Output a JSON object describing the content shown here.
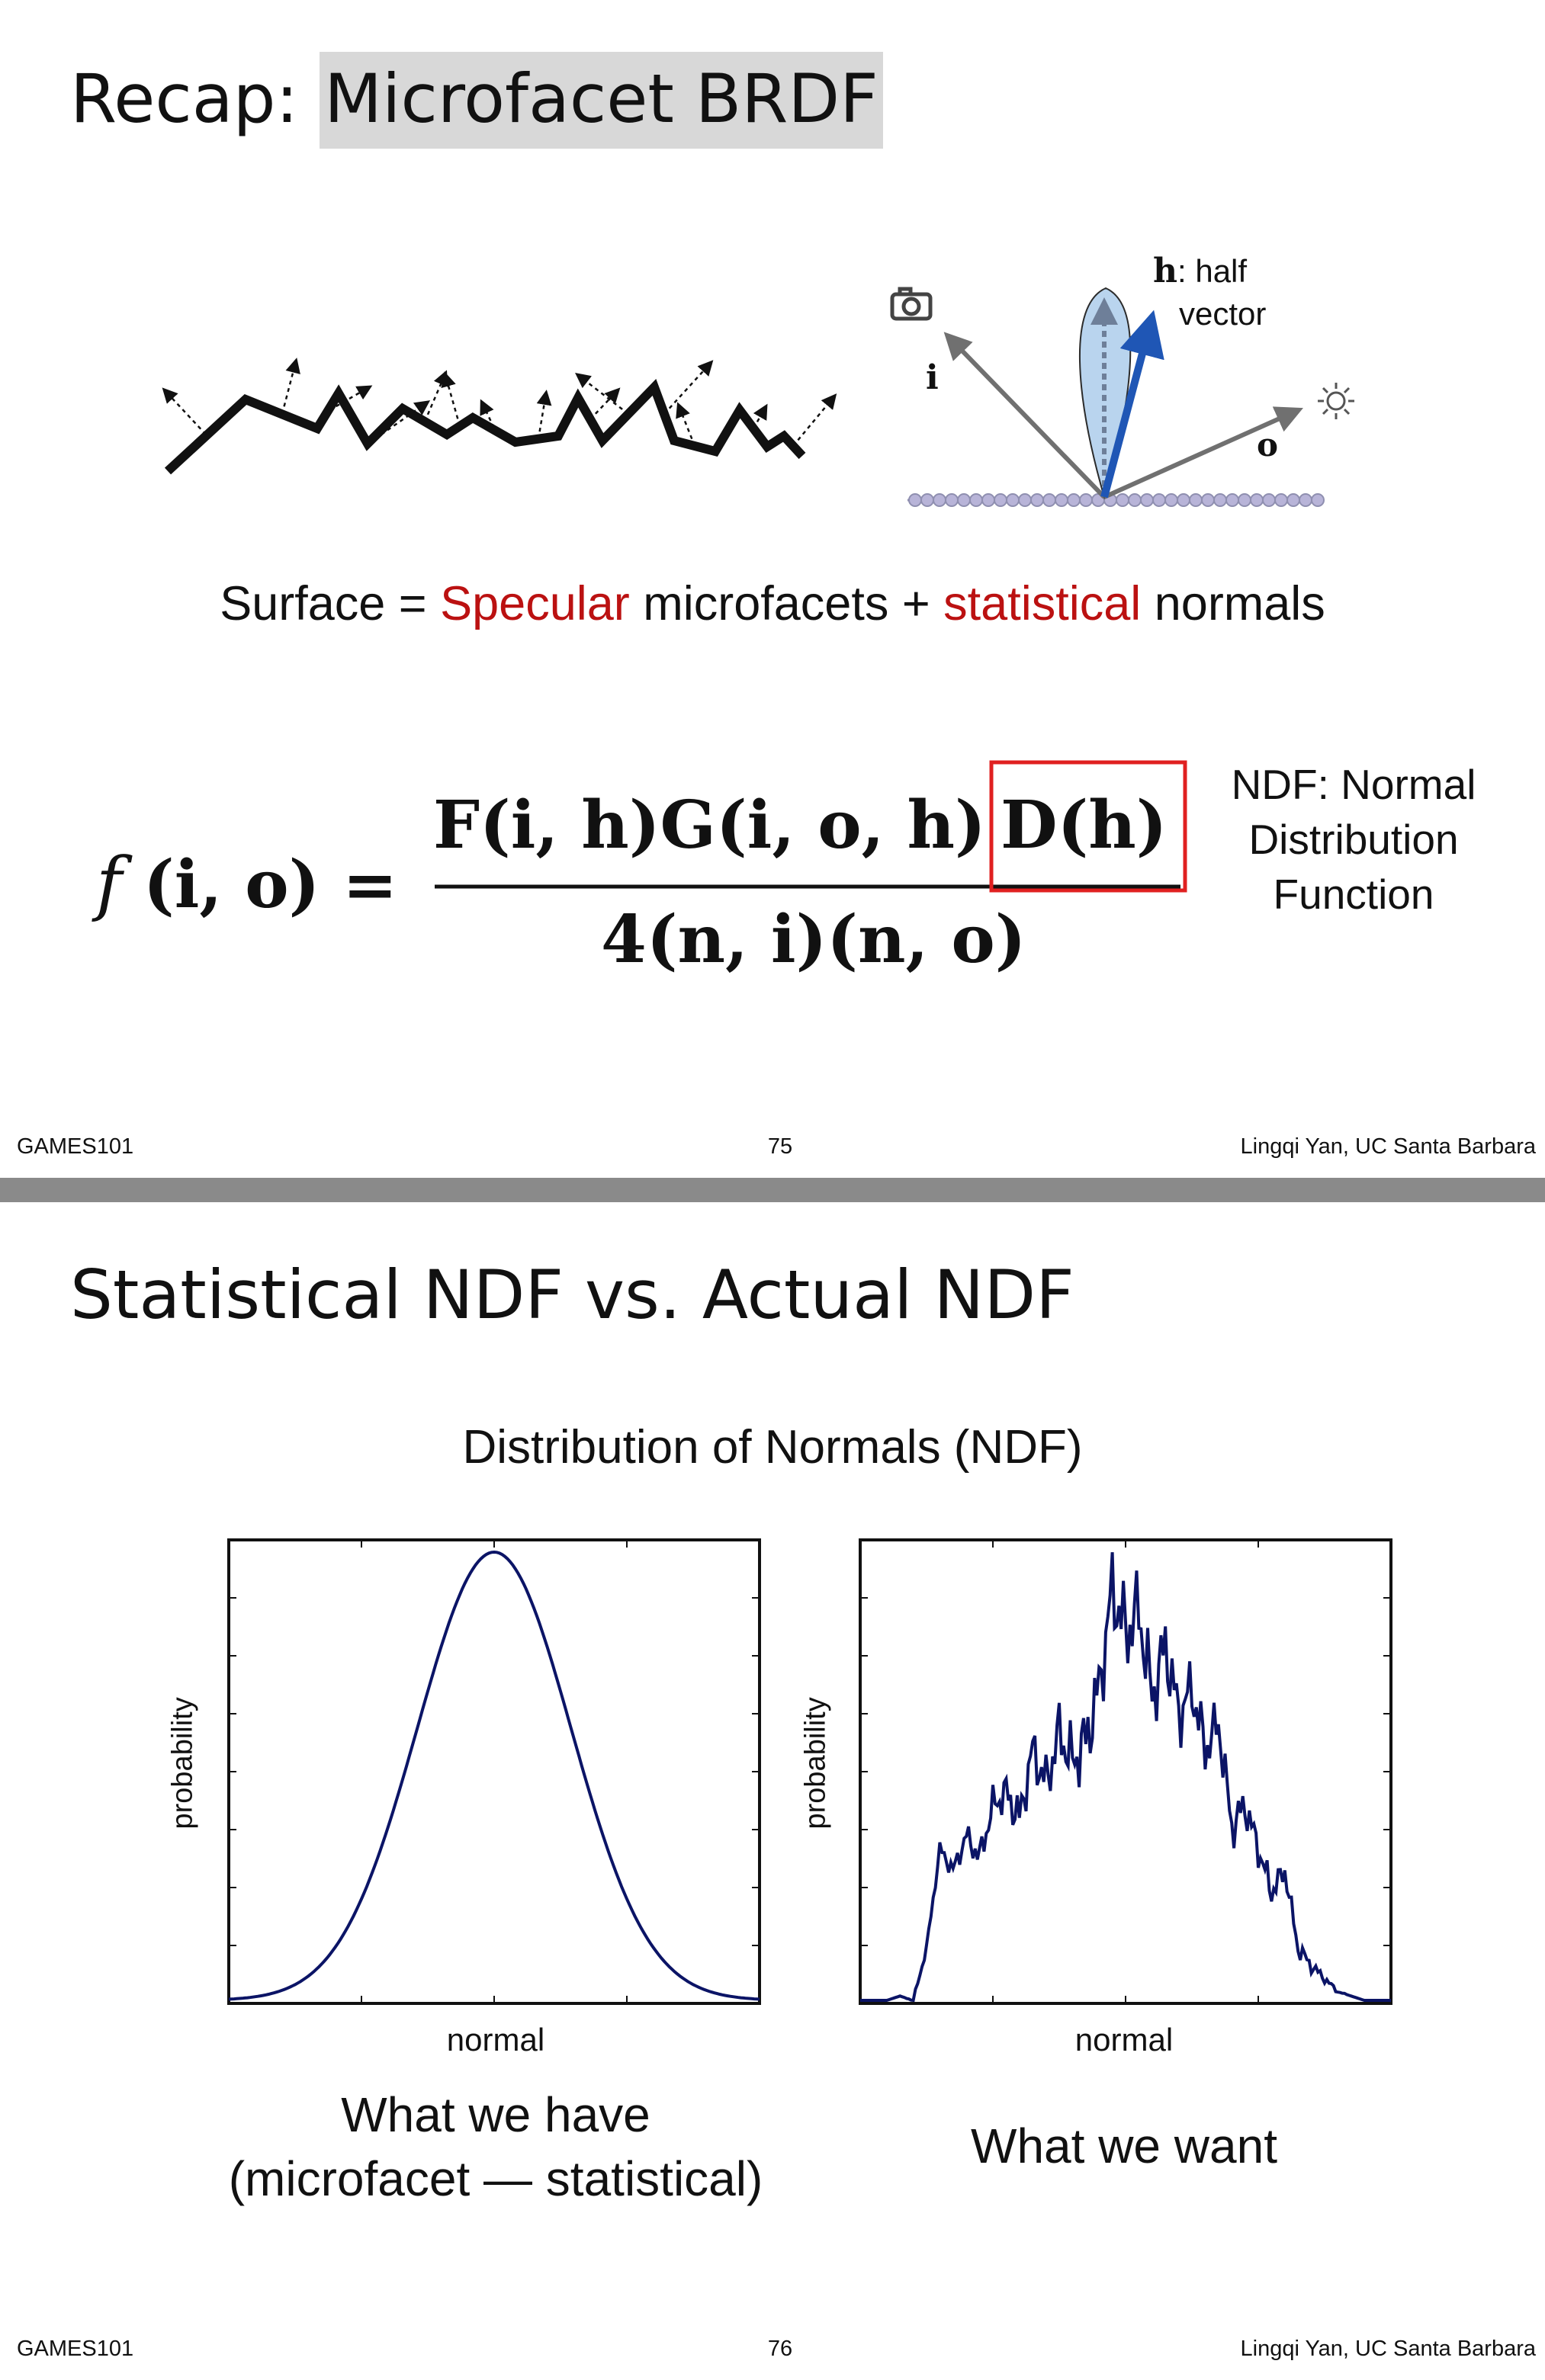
{
  "slide1": {
    "title_plain": "Recap: ",
    "title_highlight": "Microfacet BRDF",
    "h_symbol": "h",
    "h_label_line1": ": half",
    "h_label_line2": "vector",
    "i_symbol": "i",
    "o_symbol": "o",
    "surface_prefix": "Surface = ",
    "surface_specular": "Specular",
    "surface_middle": " microfacets + ",
    "surface_statistical": "statistical",
    "surface_suffix": " normals",
    "formula": {
      "lhs_f": "f",
      "lhs_args": "(i, o) =",
      "numerator": "F(i, h)G(i, o, h)",
      "numerator_boxed": "D(h)",
      "denominator": "4(n, i)(n, o)"
    },
    "ndf_note": [
      "NDF: Normal",
      "Distribution",
      "Function"
    ],
    "footer": {
      "left": "GAMES101",
      "page": "75",
      "right": "Lingqi Yan, UC Santa Barbara"
    },
    "colors": {
      "highlight": "#d8d8d8",
      "red_text": "#bb1111",
      "box": "#e02020",
      "arrow_blue": "#1f56b5",
      "arrow_gray": "#707070",
      "lobe": "#b9d4ee"
    }
  },
  "slide2": {
    "title": "Statistical NDF vs. Actual NDF",
    "chart_title": "Distribution of Normals (NDF)",
    "footer": {
      "left": "GAMES101",
      "page": "76",
      "right": "Lingqi Yan, UC Santa Barbara"
    },
    "captions": {
      "left": [
        "What we have",
        "(microfacet — statistical)"
      ],
      "right": [
        "What we want"
      ]
    }
  },
  "chart_data": [
    {
      "type": "line",
      "xlabel": "normal",
      "ylabel": "probability",
      "shape": "smooth gaussian",
      "series": [
        {
          "values": [
            0.0,
            0.0,
            0.01,
            0.04,
            0.1,
            0.21,
            0.37,
            0.56,
            0.75,
            0.91,
            1.0,
            0.91,
            0.75,
            0.56,
            0.37,
            0.21,
            0.1,
            0.04,
            0.01,
            0.0,
            0.0
          ]
        }
      ],
      "color": "#0b1466"
    },
    {
      "type": "line",
      "xlabel": "normal",
      "ylabel": "probability",
      "shape": "noisy measured distribution",
      "series": [
        {
          "values": [
            0.0,
            0.0,
            0.0,
            0.01,
            0.0,
            0.12,
            0.35,
            0.3,
            0.38,
            0.33,
            0.45,
            0.48,
            0.42,
            0.58,
            0.5,
            0.62,
            0.55,
            0.6,
            0.72,
            0.95,
            0.85,
            0.9,
            0.7,
            0.82,
            0.66,
            0.72,
            0.58,
            0.64,
            0.4,
            0.45,
            0.35,
            0.25,
            0.3,
            0.12,
            0.08,
            0.05,
            0.02,
            0.01,
            0.0,
            0.0,
            0.0
          ]
        }
      ],
      "color": "#0b1466"
    }
  ]
}
